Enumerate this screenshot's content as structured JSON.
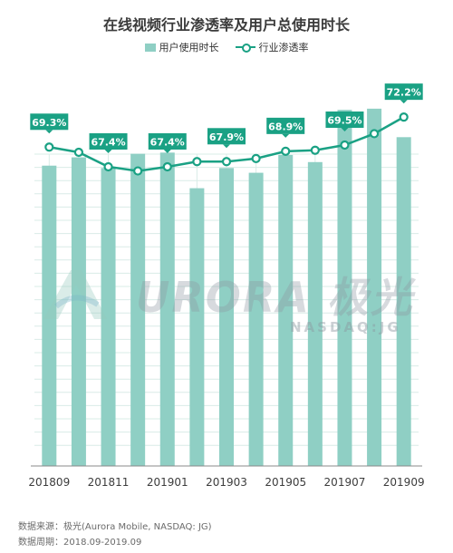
{
  "page": {
    "title": "在线视频行业渗透率及用户总使用时长",
    "source_line1": "数据来源：极光(Aurora Mobile, NASDAQ: JG)",
    "source_line2": "数据周期：2018.09-2019.09",
    "watermark_main": "URORA 极光",
    "watermark_sub": "NASDAQ:JG"
  },
  "legend": {
    "bar_label": "用户使用时长",
    "line_label": "行业渗透率"
  },
  "colors": {
    "bar": "#8fcfc4",
    "line": "#1aa184",
    "label_bg": "#1aa184",
    "grid": "#d9ece7"
  },
  "chart_data": {
    "type": "bar+line",
    "categories": [
      "201809",
      "201810",
      "201811",
      "201812",
      "201901",
      "201902",
      "201903",
      "201904",
      "201905",
      "201906",
      "201907",
      "201908",
      "201909"
    ],
    "x_tick_labels": [
      "201809",
      "201811",
      "201901",
      "201903",
      "201905",
      "201907",
      "201909"
    ],
    "series": [
      {
        "name": "用户使用时长",
        "type": "bar",
        "values": [
          253,
          260,
          251,
          263,
          264,
          234,
          251,
          247,
          262,
          256,
          300,
          301,
          277
        ]
      },
      {
        "name": "行业渗透率",
        "type": "line",
        "unit": "%",
        "values": [
          69.3,
          68.8,
          67.4,
          67.0,
          67.4,
          67.9,
          67.9,
          68.2,
          68.9,
          69.0,
          69.5,
          70.6,
          72.2
        ]
      }
    ],
    "data_labels": [
      "69.3%",
      "",
      "67.4%",
      "",
      "67.4%",
      "",
      "67.9%",
      "",
      "68.9%",
      "",
      "69.5%",
      "",
      "72.2%"
    ],
    "bar_ylim": [
      0,
      320
    ],
    "line_ylim": [
      60,
      74
    ],
    "grid": true
  }
}
